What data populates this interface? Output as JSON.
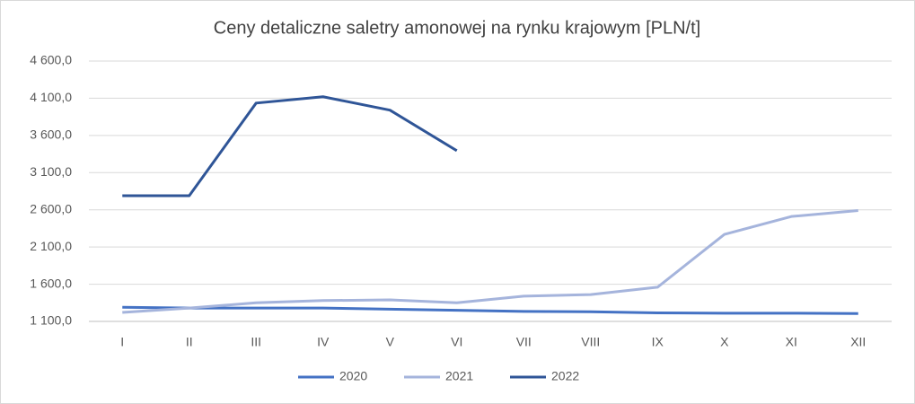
{
  "chart_data": {
    "type": "line",
    "title": "Ceny detaliczne saletry amonowej na rynku krajowym [PLN/t]",
    "categories": [
      "I",
      "II",
      "III",
      "IV",
      "V",
      "VI",
      "VII",
      "VIII",
      "IX",
      "X",
      "XI",
      "XII"
    ],
    "series": [
      {
        "name": "2020",
        "color": "#4472c4",
        "values": [
          1290,
          1280,
          1280,
          1280,
          1265,
          1250,
          1235,
          1230,
          1215,
          1210,
          1210,
          1205
        ]
      },
      {
        "name": "2021",
        "color": "#a5b4dc",
        "values": [
          1220,
          1280,
          1350,
          1380,
          1390,
          1350,
          1440,
          1460,
          1560,
          2270,
          2510,
          2590
        ]
      },
      {
        "name": "2022",
        "color": "#2f5597",
        "values": [
          2790,
          2790,
          4035,
          4120,
          3940,
          3395,
          null,
          null,
          null,
          null,
          null,
          null
        ]
      }
    ],
    "ylim": [
      1100,
      4600
    ],
    "yticks": [
      {
        "value": 1100,
        "label": "1 100,0"
      },
      {
        "value": 1600,
        "label": "1 600,0"
      },
      {
        "value": 2100,
        "label": "2 100,0"
      },
      {
        "value": 2600,
        "label": "2 600,0"
      },
      {
        "value": 3100,
        "label": "3 100,0"
      },
      {
        "value": 3600,
        "label": "3 600,0"
      },
      {
        "value": 4100,
        "label": "4 100,0"
      },
      {
        "value": 4600,
        "label": "4 600,0"
      }
    ],
    "grid": true,
    "legend": "bottom"
  }
}
